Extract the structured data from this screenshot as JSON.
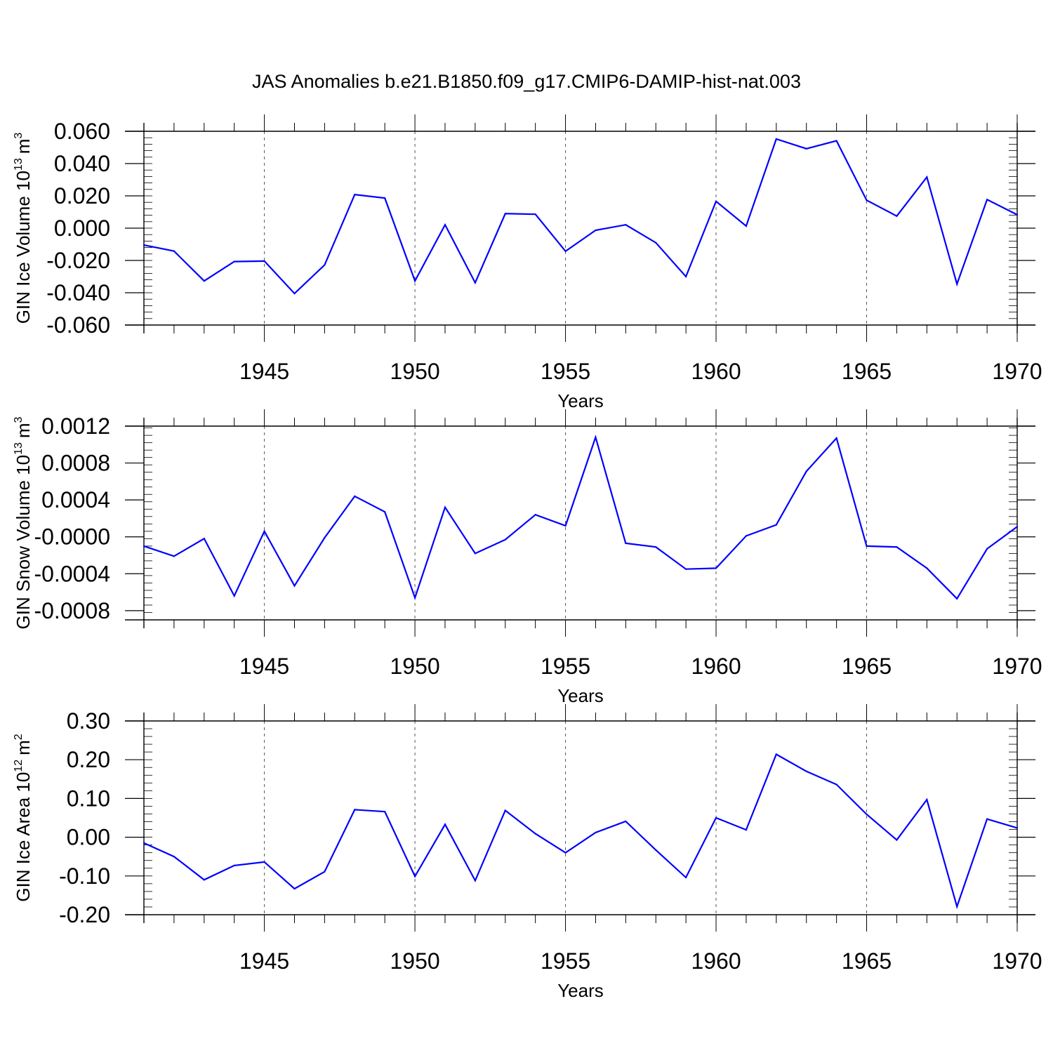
{
  "figure": {
    "title": "JAS Anomalies b.e21.B1850.f09_g17.CMIP6-DAMIP-hist-nat.003"
  },
  "chart_data": [
    {
      "type": "line",
      "ylabel": "GIN Ice Volume 10",
      "ylabel_exp": "13",
      "ylabel_unit": "m",
      "ylabel_unit_exp": "3",
      "xlabel": "Years",
      "xlim": [
        1941,
        1970
      ],
      "ylim": [
        -0.06,
        0.06
      ],
      "xticks": [
        1945,
        1950,
        1955,
        1960,
        1965,
        1970
      ],
      "xtick_labels": [
        "1945",
        "1950",
        "1955",
        "1960",
        "1965",
        "1970"
      ],
      "yticks": [
        -0.06,
        -0.04,
        -0.02,
        0.0,
        0.02,
        0.04,
        0.06
      ],
      "ytick_labels": [
        "-0.060",
        "-0.040",
        "-0.020",
        "0.000",
        "0.020",
        "0.040",
        "0.060"
      ],
      "grid": "vertical dashed at major x ticks",
      "line_color": "#0000ff",
      "x": [
        1941,
        1942,
        1943,
        1944,
        1945,
        1946,
        1947,
        1948,
        1949,
        1950,
        1951,
        1952,
        1953,
        1954,
        1955,
        1956,
        1957,
        1958,
        1959,
        1960,
        1961,
        1962,
        1963,
        1964,
        1965,
        1966,
        1967,
        1968,
        1969,
        1970
      ],
      "values": [
        -0.0105,
        -0.0142,
        -0.0327,
        -0.0207,
        -0.0204,
        -0.0405,
        -0.0228,
        0.0208,
        0.0186,
        -0.0327,
        0.0021,
        -0.0338,
        0.009,
        0.0086,
        -0.0143,
        -0.0013,
        0.0021,
        -0.009,
        -0.03,
        0.0166,
        0.0013,
        0.0552,
        0.0492,
        0.0541,
        0.0173,
        0.0075,
        0.0316,
        -0.0346,
        0.0177,
        0.0083
      ]
    },
    {
      "type": "line",
      "ylabel": "GIN Snow Volume 10",
      "ylabel_exp": "13",
      "ylabel_unit": "m",
      "ylabel_unit_exp": "3",
      "xlabel": "Years",
      "xlim": [
        1941,
        1970
      ],
      "ylim": [
        -0.0009,
        0.0012
      ],
      "xticks": [
        1945,
        1950,
        1955,
        1960,
        1965,
        1970
      ],
      "xtick_labels": [
        "1945",
        "1950",
        "1955",
        "1960",
        "1965",
        "1970"
      ],
      "yticks": [
        -0.0008,
        -0.0004,
        0.0,
        0.0004,
        0.0008,
        0.0012
      ],
      "ytick_labels": [
        "-0.0008",
        "-0.0004",
        "-0.0000",
        "0.0004",
        "0.0008",
        "0.0012"
      ],
      "grid": "vertical dashed at major x ticks",
      "line_color": "#0000ff",
      "x": [
        1941,
        1942,
        1943,
        1944,
        1945,
        1946,
        1947,
        1948,
        1949,
        1950,
        1951,
        1952,
        1953,
        1954,
        1955,
        1956,
        1957,
        1958,
        1959,
        1960,
        1961,
        1962,
        1963,
        1964,
        1965,
        1966,
        1967,
        1968,
        1969,
        1970
      ],
      "values": [
        -0.0001,
        -0.00021,
        -2e-05,
        -0.00064,
        6e-05,
        -0.00053,
        -1e-05,
        0.00044,
        0.00027,
        -0.00066,
        0.00032,
        -0.00018,
        -3e-05,
        0.00024,
        0.00012,
        0.00108,
        -7e-05,
        -0.00011,
        -0.00035,
        -0.00034,
        1e-05,
        0.00013,
        0.00071,
        0.00107,
        -0.0001,
        -0.00011,
        -0.00034,
        -0.00067,
        -0.00013,
        0.00011
      ]
    },
    {
      "type": "line",
      "ylabel": "GIN Ice Area 10",
      "ylabel_exp": "12",
      "ylabel_unit": "m",
      "ylabel_unit_exp": "2",
      "xlabel": "Years",
      "xlim": [
        1941,
        1970
      ],
      "ylim": [
        -0.2,
        0.3
      ],
      "xticks": [
        1945,
        1950,
        1955,
        1960,
        1965,
        1970
      ],
      "xtick_labels": [
        "1945",
        "1950",
        "1955",
        "1960",
        "1965",
        "1970"
      ],
      "yticks": [
        -0.2,
        -0.1,
        0.0,
        0.1,
        0.2,
        0.3
      ],
      "ytick_labels": [
        "-0.20",
        "-0.10",
        "0.00",
        "0.10",
        "0.20",
        "0.30"
      ],
      "grid": "vertical dashed at major x ticks",
      "line_color": "#0000ff",
      "x": [
        1941,
        1942,
        1943,
        1944,
        1945,
        1946,
        1947,
        1948,
        1949,
        1950,
        1951,
        1952,
        1953,
        1954,
        1955,
        1956,
        1957,
        1958,
        1959,
        1960,
        1961,
        1962,
        1963,
        1964,
        1965,
        1966,
        1967,
        1968,
        1969,
        1970
      ],
      "values": [
        -0.015,
        -0.05,
        -0.11,
        -0.073,
        -0.064,
        -0.133,
        -0.089,
        0.071,
        0.066,
        -0.101,
        0.033,
        -0.112,
        0.069,
        0.009,
        -0.04,
        0.012,
        0.041,
        -0.033,
        -0.104,
        0.05,
        0.019,
        0.214,
        0.17,
        0.136,
        0.059,
        -0.007,
        0.097,
        -0.179,
        0.047,
        0.024
      ]
    }
  ]
}
